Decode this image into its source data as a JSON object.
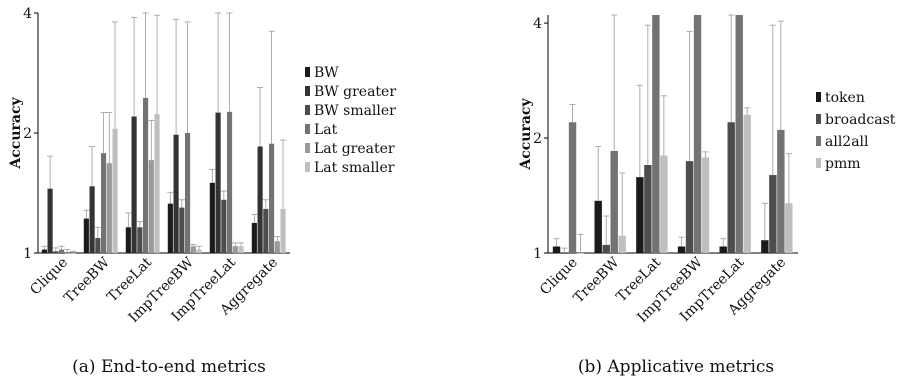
{
  "chart_data": [
    {
      "type": "bar",
      "caption": "(a) End-to-end metrics",
      "ylabel": "Accuracy",
      "yscale": "log",
      "ylim": [
        1,
        4
      ],
      "yticks": [
        1,
        2,
        4
      ],
      "legend_position": "right",
      "categories": [
        "Clique",
        "TreeBW",
        "TreeLat",
        "ImpTreeBW",
        "ImpTreeLat",
        "Aggregate"
      ],
      "series": [
        {
          "name": "BW",
          "color": "#1a1a1a",
          "values": [
            1.02,
            1.22,
            1.16,
            1.33,
            1.5,
            1.19
          ],
          "err_high": [
            1.04,
            1.28,
            1.26,
            1.42,
            1.62,
            1.25
          ]
        },
        {
          "name": "BW greater",
          "color": "#333333",
          "values": [
            1.45,
            1.47,
            2.2,
            1.98,
            2.25,
            1.85
          ],
          "err_high": [
            1.75,
            1.85,
            3.9,
            3.85,
            4.15,
            2.6
          ]
        },
        {
          "name": "BW smaller",
          "color": "#4d4d4d",
          "values": [
            1.01,
            1.09,
            1.16,
            1.3,
            1.36,
            1.29
          ],
          "err_high": [
            1.03,
            1.16,
            1.2,
            1.36,
            1.43,
            1.36
          ]
        },
        {
          "name": "Lat",
          "color": "#737373",
          "values": [
            1.02,
            1.78,
            2.45,
            2.0,
            2.26,
            1.88
          ],
          "err_high": [
            1.04,
            2.25,
            4.2,
            3.8,
            4.2,
            3.6
          ]
        },
        {
          "name": "Lat greater",
          "color": "#999999",
          "values": [
            1.0,
            1.68,
            1.71,
            1.04,
            1.04,
            1.07
          ],
          "err_high": [
            1.02,
            2.25,
            2.15,
            1.05,
            1.06,
            1.1
          ]
        },
        {
          "name": "Lat smaller",
          "color": "#bfbfbf",
          "values": [
            1.0,
            2.05,
            2.23,
            1.02,
            1.04,
            1.29
          ],
          "err_high": [
            1.01,
            3.8,
            3.95,
            1.04,
            1.06,
            1.92
          ]
        }
      ]
    },
    {
      "type": "bar",
      "caption": "(b) Applicative metrics",
      "ylabel": "Accuracy",
      "yscale": "log",
      "ylim": [
        1,
        4.2
      ],
      "yticks": [
        1,
        2,
        4
      ],
      "legend_position": "right",
      "categories": [
        "Clique",
        "TreeBW",
        "TreeLat",
        "ImpTreeBW",
        "ImpTreeLat",
        "Aggregate"
      ],
      "series": [
        {
          "name": "token",
          "color": "#1a1a1a",
          "values": [
            1.04,
            1.37,
            1.58,
            1.04,
            1.04,
            1.08
          ],
          "err_high": [
            1.09,
            1.9,
            2.75,
            1.1,
            1.09,
            1.35
          ]
        },
        {
          "name": "broadcast",
          "color": "#4d4d4d",
          "values": [
            1.0,
            1.05,
            1.7,
            1.74,
            2.2,
            1.6
          ],
          "err_high": [
            1.03,
            1.25,
            3.95,
            3.8,
            4.2,
            3.95
          ]
        },
        {
          "name": "all2all",
          "color": "#737373",
          "values": [
            2.2,
            1.85,
            4.2,
            4.2,
            4.2,
            2.1
          ],
          "err_high": [
            2.45,
            4.2,
            4.2,
            4.2,
            4.2,
            4.05
          ]
        },
        {
          "name": "pmm",
          "color": "#bfbfbf",
          "values": [
            1.0,
            1.11,
            1.8,
            1.78,
            2.3,
            1.35
          ],
          "err_high": [
            1.12,
            1.62,
            2.58,
            1.84,
            2.4,
            1.82
          ]
        }
      ]
    }
  ]
}
